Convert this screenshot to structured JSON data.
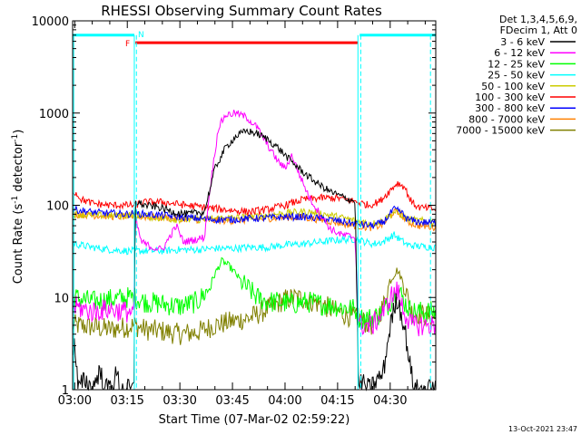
{
  "chart_data": {
    "type": "line",
    "title": "RHESSI Observing Summary Count Rates",
    "xlabel": "Start Time (07-Mar-02 02:59:22)",
    "ylabel_main": "Count Rate (s",
    "ylabel_sup1": "-1",
    "ylabel_mid": " detector",
    "ylabel_sup2": "-1",
    "ylabel_end": ")",
    "y_scale": "log",
    "ylim": [
      1,
      10000
    ],
    "x_tick_labels": [
      "03:00",
      "03:15",
      "03:30",
      "03:45",
      "04:00",
      "04:15",
      "04:30"
    ],
    "x_tick_minutes": [
      0,
      15,
      30,
      45,
      60,
      75,
      90
    ],
    "xlim_minutes": [
      -0.6,
      103
    ],
    "y_ticks": [
      {
        "v": 1,
        "label": "1"
      },
      {
        "v": 10,
        "label": "10"
      },
      {
        "v": 100,
        "label": "100"
      },
      {
        "v": 1000,
        "label": "1000"
      },
      {
        "v": 10000,
        "label": "10000"
      }
    ],
    "legend_header": [
      "Det 1,3,4,5,6,9,",
      "FDecim 1, Att 0"
    ],
    "footer": "13-Oct-2021 23:47",
    "series": [
      {
        "name": "3 - 6 keV",
        "color": "#000000",
        "points": [
          [
            -0.6,
            3
          ],
          [
            0,
            3
          ],
          [
            1,
            1
          ],
          [
            3,
            1.3
          ],
          [
            5,
            1
          ],
          [
            7,
            1.6
          ],
          [
            9,
            1
          ],
          [
            11,
            1.2
          ],
          [
            12,
            1.5
          ],
          [
            13,
            1
          ],
          [
            17,
            1
          ],
          [
            17.2,
            110
          ],
          [
            20,
            100
          ],
          [
            24,
            95
          ],
          [
            28,
            85
          ],
          [
            32,
            80
          ],
          [
            37,
            85
          ],
          [
            40,
            250
          ],
          [
            43,
            420
          ],
          [
            46,
            560
          ],
          [
            49,
            640
          ],
          [
            52,
            600
          ],
          [
            55,
            520
          ],
          [
            58,
            420
          ],
          [
            61,
            320
          ],
          [
            64,
            250
          ],
          [
            67,
            200
          ],
          [
            70,
            165
          ],
          [
            73,
            140
          ],
          [
            76,
            125
          ],
          [
            80,
            110
          ],
          [
            81,
            1
          ],
          [
            82,
            1.2
          ],
          [
            84,
            1
          ],
          [
            88,
            1.5
          ],
          [
            90,
            5
          ],
          [
            92,
            10
          ],
          [
            94,
            5
          ],
          [
            96,
            1.5
          ],
          [
            97,
            1
          ],
          [
            103,
            1
          ]
        ]
      },
      {
        "name": "6 - 12 keV",
        "color": "#ff00ff",
        "points": [
          [
            -0.6,
            8
          ],
          [
            0,
            8
          ],
          [
            5,
            7
          ],
          [
            10,
            7.5
          ],
          [
            15,
            7
          ],
          [
            17,
            7
          ],
          [
            17.2,
            75
          ],
          [
            19,
            40
          ],
          [
            22,
            35
          ],
          [
            25,
            33
          ],
          [
            27,
            45
          ],
          [
            29,
            60
          ],
          [
            31,
            40
          ],
          [
            34,
            42
          ],
          [
            37,
            45
          ],
          [
            39,
            200
          ],
          [
            41,
            700
          ],
          [
            43,
            950
          ],
          [
            46,
            1000
          ],
          [
            49,
            900
          ],
          [
            52,
            700
          ],
          [
            55,
            450
          ],
          [
            58,
            300
          ],
          [
            60,
            250
          ],
          [
            62,
            350
          ],
          [
            64,
            220
          ],
          [
            67,
            120
          ],
          [
            70,
            80
          ],
          [
            73,
            55
          ],
          [
            76,
            48
          ],
          [
            80,
            45
          ],
          [
            81,
            5
          ],
          [
            85,
            5
          ],
          [
            88,
            7
          ],
          [
            90,
            10
          ],
          [
            92,
            12
          ],
          [
            94,
            7
          ],
          [
            96,
            5
          ],
          [
            103,
            5
          ]
        ]
      },
      {
        "name": "12 - 25 keV",
        "color": "#00ff00",
        "points": [
          [
            -0.6,
            10
          ],
          [
            0,
            10
          ],
          [
            5,
            9
          ],
          [
            10,
            9.5
          ],
          [
            15,
            10
          ],
          [
            17,
            10
          ],
          [
            20,
            9
          ],
          [
            25,
            8.5
          ],
          [
            30,
            8
          ],
          [
            35,
            9
          ],
          [
            38,
            12
          ],
          [
            40,
            18
          ],
          [
            42,
            25
          ],
          [
            44,
            22
          ],
          [
            46,
            18
          ],
          [
            48,
            14
          ],
          [
            50,
            12
          ],
          [
            52,
            10
          ],
          [
            55,
            9
          ],
          [
            58,
            9
          ],
          [
            62,
            8.5
          ],
          [
            66,
            9
          ],
          [
            70,
            8.5
          ],
          [
            75,
            8
          ],
          [
            80,
            7.5
          ],
          [
            81,
            6
          ],
          [
            85,
            6
          ],
          [
            88,
            7
          ],
          [
            90,
            9
          ],
          [
            92,
            13
          ],
          [
            94,
            9
          ],
          [
            96,
            7
          ],
          [
            103,
            7
          ]
        ]
      },
      {
        "name": "25 - 50 keV",
        "color": "#00ffff",
        "points": [
          [
            -0.6,
            38
          ],
          [
            0,
            38
          ],
          [
            5,
            35
          ],
          [
            10,
            33
          ],
          [
            15,
            32
          ],
          [
            20,
            32
          ],
          [
            25,
            32
          ],
          [
            30,
            33
          ],
          [
            35,
            33
          ],
          [
            40,
            34
          ],
          [
            45,
            34
          ],
          [
            50,
            35
          ],
          [
            55,
            35
          ],
          [
            60,
            37
          ],
          [
            65,
            38
          ],
          [
            70,
            40
          ],
          [
            75,
            42
          ],
          [
            80,
            43
          ],
          [
            85,
            38
          ],
          [
            88,
            40
          ],
          [
            91,
            48
          ],
          [
            93,
            42
          ],
          [
            95,
            37
          ],
          [
            98,
            36
          ],
          [
            103,
            35
          ]
        ]
      },
      {
        "name": "50 - 100 keV",
        "color": "#cccc00",
        "points": [
          [
            -0.6,
            80
          ],
          [
            0,
            80
          ],
          [
            5,
            78
          ],
          [
            10,
            77
          ],
          [
            15,
            78
          ],
          [
            17,
            80
          ],
          [
            20,
            77
          ],
          [
            25,
            72
          ],
          [
            30,
            70
          ],
          [
            35,
            70
          ],
          [
            40,
            72
          ],
          [
            45,
            73
          ],
          [
            50,
            75
          ],
          [
            55,
            78
          ],
          [
            60,
            82
          ],
          [
            65,
            85
          ],
          [
            70,
            82
          ],
          [
            75,
            75
          ],
          [
            80,
            68
          ],
          [
            85,
            63
          ],
          [
            88,
            68
          ],
          [
            91,
            85
          ],
          [
            93,
            80
          ],
          [
            95,
            70
          ],
          [
            98,
            68
          ],
          [
            103,
            66
          ]
        ]
      },
      {
        "name": "100 - 300 keV",
        "color": "#ff0000",
        "points": [
          [
            -0.6,
            140
          ],
          [
            0,
            140
          ],
          [
            2,
            115
          ],
          [
            5,
            105
          ],
          [
            10,
            100
          ],
          [
            15,
            100
          ],
          [
            17,
            100
          ],
          [
            20,
            108
          ],
          [
            25,
            108
          ],
          [
            30,
            102
          ],
          [
            35,
            97
          ],
          [
            40,
            92
          ],
          [
            45,
            88
          ],
          [
            50,
            85
          ],
          [
            55,
            90
          ],
          [
            60,
            100
          ],
          [
            65,
            115
          ],
          [
            70,
            120
          ],
          [
            75,
            120
          ],
          [
            80,
            110
          ],
          [
            84,
            100
          ],
          [
            87,
            110
          ],
          [
            90,
            145
          ],
          [
            92,
            175
          ],
          [
            94,
            160
          ],
          [
            96,
            110
          ],
          [
            98,
            95
          ],
          [
            103,
            90
          ]
        ]
      },
      {
        "name": "300 - 800 keV",
        "color": "#0000ff",
        "points": [
          [
            -0.6,
            90
          ],
          [
            0,
            90
          ],
          [
            5,
            84
          ],
          [
            10,
            82
          ],
          [
            15,
            80
          ],
          [
            17,
            82
          ],
          [
            20,
            80
          ],
          [
            25,
            78
          ],
          [
            30,
            75
          ],
          [
            35,
            72
          ],
          [
            40,
            70
          ],
          [
            45,
            70
          ],
          [
            50,
            72
          ],
          [
            55,
            73
          ],
          [
            60,
            75
          ],
          [
            65,
            75
          ],
          [
            70,
            72
          ],
          [
            75,
            68
          ],
          [
            80,
            63
          ],
          [
            85,
            60
          ],
          [
            88,
            65
          ],
          [
            91,
            90
          ],
          [
            93,
            85
          ],
          [
            95,
            70
          ],
          [
            98,
            66
          ],
          [
            103,
            64
          ]
        ]
      },
      {
        "name": "800 - 7000 keV",
        "color": "#ff8000",
        "points": [
          [
            -0.6,
            80
          ],
          [
            0,
            80
          ],
          [
            5,
            78
          ],
          [
            10,
            76
          ],
          [
            15,
            75
          ],
          [
            20,
            75
          ],
          [
            25,
            74
          ],
          [
            30,
            72
          ],
          [
            35,
            70
          ],
          [
            40,
            68
          ],
          [
            45,
            68
          ],
          [
            50,
            70
          ],
          [
            55,
            72
          ],
          [
            60,
            74
          ],
          [
            65,
            74
          ],
          [
            70,
            70
          ],
          [
            75,
            65
          ],
          [
            80,
            60
          ],
          [
            85,
            57
          ],
          [
            88,
            62
          ],
          [
            91,
            85
          ],
          [
            93,
            80
          ],
          [
            95,
            66
          ],
          [
            98,
            60
          ],
          [
            103,
            58
          ]
        ]
      },
      {
        "name": "7000 - 15000 keV",
        "color": "#808000",
        "points": [
          [
            -0.6,
            5
          ],
          [
            0,
            5
          ],
          [
            5,
            4.8
          ],
          [
            10,
            4.5
          ],
          [
            15,
            4.8
          ],
          [
            17,
            5
          ],
          [
            20,
            4.5
          ],
          [
            25,
            4.3
          ],
          [
            30,
            4
          ],
          [
            35,
            4.2
          ],
          [
            40,
            5
          ],
          [
            45,
            5.5
          ],
          [
            50,
            6
          ],
          [
            55,
            7.5
          ],
          [
            60,
            9.5
          ],
          [
            63,
            10
          ],
          [
            66,
            9.5
          ],
          [
            70,
            8.5
          ],
          [
            75,
            7
          ],
          [
            80,
            6
          ],
          [
            85,
            5
          ],
          [
            88,
            8
          ],
          [
            90,
            15
          ],
          [
            92,
            20
          ],
          [
            94,
            14
          ],
          [
            96,
            7
          ],
          [
            103,
            6
          ]
        ]
      }
    ],
    "flags": {
      "color": "#00ffff",
      "label": "N",
      "f_label": "F",
      "f_color": "#ff0000",
      "bars": [
        {
          "from": -0.6,
          "to": 17.0,
          "color": "#00ffff",
          "level": 7000
        },
        {
          "from": 17.3,
          "to": 80.8,
          "color": "#ff0000",
          "level": 5800
        },
        {
          "from": 81.3,
          "to": 103,
          "color": "#00ffff",
          "level": 7000
        }
      ],
      "vlines_solid": [
        17.0,
        80.8
      ],
      "vlines_dashed": [
        17.6,
        81.6,
        101.5
      ],
      "left_solid": -0.3
    }
  }
}
